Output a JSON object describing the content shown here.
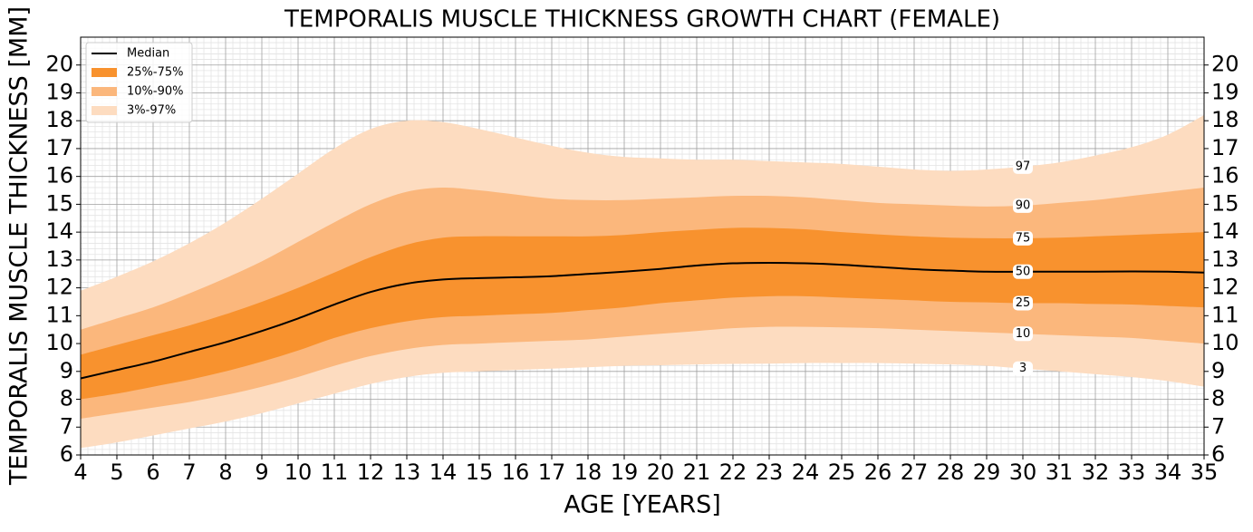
{
  "chart_data": {
    "type": "percentile_bands",
    "title": "TEMPORALIS MUSCLE THICKNESS GROWTH CHART (FEMALE)",
    "x_label": "AGE [YEARS]",
    "y_label": "TEMPORALIS MUSCLE THICKNESS [MM]",
    "xlim": [
      4,
      35
    ],
    "ylim": [
      6,
      21
    ],
    "xticks": [
      4,
      5,
      6,
      7,
      8,
      9,
      10,
      11,
      12,
      13,
      14,
      15,
      16,
      17,
      18,
      19,
      20,
      21,
      22,
      23,
      24,
      25,
      26,
      27,
      28,
      29,
      30,
      31,
      32,
      33,
      34,
      35
    ],
    "yticks": [
      6,
      7,
      8,
      9,
      10,
      11,
      12,
      13,
      14,
      15,
      16,
      17,
      18,
      19,
      20
    ],
    "grid": true,
    "minor_grid": true,
    "legend": "upper left",
    "x": [
      4,
      5,
      6,
      7,
      8,
      9,
      10,
      11,
      12,
      13,
      14,
      15,
      16,
      17,
      18,
      19,
      20,
      21,
      22,
      23,
      24,
      25,
      26,
      27,
      28,
      29,
      30,
      31,
      32,
      33,
      34,
      35
    ],
    "bands": [
      {
        "name": "3%-97%",
        "color": "#fddcc0",
        "lower": [
          6.25,
          6.45,
          6.7,
          6.95,
          7.2,
          7.5,
          7.85,
          8.2,
          8.55,
          8.8,
          8.95,
          9.0,
          9.05,
          9.1,
          9.15,
          9.2,
          9.22,
          9.25,
          9.27,
          9.28,
          9.3,
          9.3,
          9.3,
          9.28,
          9.25,
          9.2,
          9.1,
          9.0,
          8.9,
          8.8,
          8.65,
          8.45
        ],
        "upper": [
          11.9,
          12.4,
          12.95,
          13.6,
          14.35,
          15.2,
          16.1,
          17.0,
          17.7,
          18.0,
          17.95,
          17.7,
          17.4,
          17.1,
          16.85,
          16.7,
          16.65,
          16.6,
          16.6,
          16.55,
          16.5,
          16.45,
          16.35,
          16.25,
          16.2,
          16.25,
          16.35,
          16.5,
          16.75,
          17.05,
          17.5,
          18.2
        ]
      },
      {
        "name": "10%-90%",
        "color": "#fbb77c",
        "lower": [
          7.3,
          7.5,
          7.7,
          7.9,
          8.15,
          8.45,
          8.8,
          9.2,
          9.55,
          9.8,
          9.95,
          10.0,
          10.05,
          10.1,
          10.15,
          10.25,
          10.35,
          10.45,
          10.55,
          10.6,
          10.6,
          10.58,
          10.55,
          10.5,
          10.45,
          10.4,
          10.35,
          10.3,
          10.25,
          10.2,
          10.1,
          10.0
        ],
        "upper": [
          10.5,
          10.9,
          11.3,
          11.8,
          12.35,
          12.95,
          13.65,
          14.35,
          15.0,
          15.45,
          15.6,
          15.5,
          15.35,
          15.2,
          15.15,
          15.15,
          15.2,
          15.25,
          15.3,
          15.3,
          15.25,
          15.15,
          15.05,
          15.0,
          14.95,
          14.92,
          14.95,
          15.05,
          15.15,
          15.3,
          15.45,
          15.6
        ]
      },
      {
        "name": "25%-75%",
        "color": "#f8922e",
        "lower": [
          8.0,
          8.2,
          8.45,
          8.7,
          9.0,
          9.35,
          9.75,
          10.2,
          10.55,
          10.8,
          10.95,
          11.0,
          11.05,
          11.1,
          11.2,
          11.3,
          11.45,
          11.55,
          11.65,
          11.7,
          11.7,
          11.65,
          11.6,
          11.55,
          11.5,
          11.48,
          11.45,
          11.45,
          11.42,
          11.4,
          11.35,
          11.3
        ],
        "upper": [
          9.6,
          9.95,
          10.3,
          10.65,
          11.05,
          11.5,
          12.0,
          12.55,
          13.1,
          13.55,
          13.8,
          13.85,
          13.85,
          13.85,
          13.85,
          13.9,
          14.0,
          14.08,
          14.15,
          14.15,
          14.1,
          14.0,
          13.92,
          13.85,
          13.8,
          13.78,
          13.78,
          13.8,
          13.85,
          13.9,
          13.95,
          14.0
        ]
      }
    ],
    "series": [
      {
        "name": "Median",
        "color": "#000000",
        "values": [
          8.75,
          9.05,
          9.35,
          9.7,
          10.05,
          10.45,
          10.9,
          11.4,
          11.85,
          12.15,
          12.3,
          12.35,
          12.38,
          12.42,
          12.5,
          12.58,
          12.68,
          12.8,
          12.88,
          12.9,
          12.88,
          12.83,
          12.75,
          12.67,
          12.62,
          12.58,
          12.58,
          12.58,
          12.58,
          12.59,
          12.58,
          12.55
        ]
      }
    ],
    "curve_labels": [
      {
        "label": "97",
        "x": 30,
        "y": 16.35
      },
      {
        "label": "90",
        "x": 30,
        "y": 14.95
      },
      {
        "label": "75",
        "x": 30,
        "y": 13.78
      },
      {
        "label": "50",
        "x": 30,
        "y": 12.58
      },
      {
        "label": "25",
        "x": 30,
        "y": 11.45
      },
      {
        "label": "10",
        "x": 30,
        "y": 10.35
      },
      {
        "label": "3",
        "x": 30,
        "y": 9.1
      }
    ]
  }
}
